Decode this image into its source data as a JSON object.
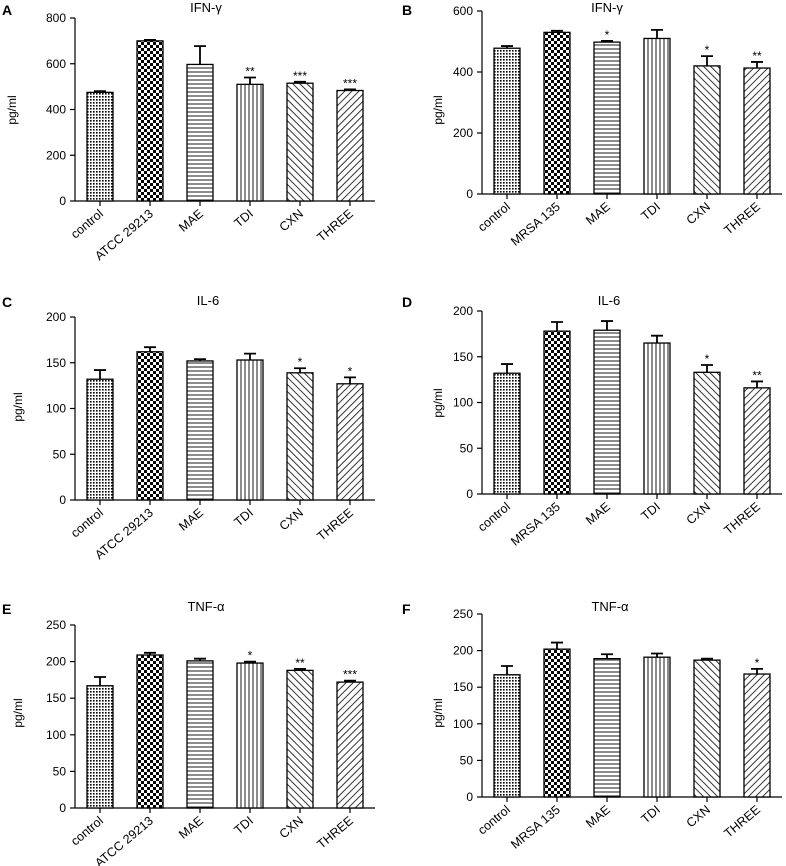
{
  "figure": {
    "patterns": [
      "dots",
      "checker",
      "hlines",
      "vlines",
      "diagup",
      "diagdown"
    ]
  },
  "chart_data": [
    {
      "panel": "A",
      "type": "bar",
      "title": "IFN-γ",
      "ylabel": "pg/ml",
      "ylim": [
        0,
        800
      ],
      "yticks": [
        0,
        200,
        400,
        600,
        800
      ],
      "categories": [
        "control",
        "ATCC 29213",
        "MAE",
        "TDI",
        "CXN",
        "THREE"
      ],
      "values": [
        475,
        700,
        597,
        510,
        515,
        483
      ],
      "errors": [
        5,
        4,
        80,
        30,
        6,
        5
      ],
      "significance": [
        "",
        "",
        "",
        "**",
        "***",
        "***"
      ]
    },
    {
      "panel": "B",
      "type": "bar",
      "title": "IFN-γ",
      "ylabel": "pg/ml",
      "ylim": [
        0,
        600
      ],
      "yticks": [
        0,
        200,
        400,
        600
      ],
      "categories": [
        "control",
        "MRSA 135",
        "MAE",
        "TDI",
        "CXN",
        "THREE"
      ],
      "values": [
        478,
        530,
        498,
        510,
        420,
        413
      ],
      "errors": [
        7,
        5,
        4,
        28,
        32,
        20
      ],
      "significance": [
        "",
        "",
        "*",
        "",
        "*",
        "**"
      ]
    },
    {
      "panel": "C",
      "type": "bar",
      "title": "IL-6",
      "ylabel": "pg/ml",
      "ylim": [
        0,
        200
      ],
      "yticks": [
        0,
        50,
        100,
        150,
        200
      ],
      "categories": [
        "control",
        "ATCC 29213",
        "MAE",
        "TDI",
        "CXN",
        "THREE"
      ],
      "values": [
        132,
        162,
        152,
        153,
        139,
        127
      ],
      "errors": [
        10,
        5,
        2,
        7,
        5,
        7
      ],
      "significance": [
        "",
        "",
        "",
        "",
        "*",
        "*"
      ]
    },
    {
      "panel": "D",
      "type": "bar",
      "title": "IL-6",
      "ylabel": "pg/ml",
      "ylim": [
        0,
        200
      ],
      "yticks": [
        0,
        50,
        100,
        150,
        200
      ],
      "categories": [
        "control",
        "MRSA 135",
        "MAE",
        "TDI",
        "CXN",
        "THREE"
      ],
      "values": [
        132,
        178,
        179,
        165,
        133,
        116
      ],
      "errors": [
        10,
        10,
        10,
        8,
        8,
        7
      ],
      "significance": [
        "",
        "",
        "",
        "",
        "*",
        "**"
      ]
    },
    {
      "panel": "E",
      "type": "bar",
      "title": "TNF-α",
      "ylabel": "pg/ml",
      "ylim": [
        0,
        250
      ],
      "yticks": [
        0,
        50,
        100,
        150,
        200,
        250
      ],
      "categories": [
        "control",
        "ATCC 29213",
        "MAE",
        "TDI",
        "CXN",
        "THREE"
      ],
      "values": [
        167,
        209,
        201,
        198,
        188,
        172
      ],
      "errors": [
        12,
        3,
        3,
        2,
        2,
        2
      ],
      "significance": [
        "",
        "",
        "",
        "*",
        "**",
        "***"
      ]
    },
    {
      "panel": "F",
      "type": "bar",
      "title": "TNF-α",
      "ylabel": "pg/ml",
      "ylim": [
        0,
        250
      ],
      "yticks": [
        0,
        50,
        100,
        150,
        200,
        250
      ],
      "categories": [
        "control",
        "MRSA 135",
        "MAE",
        "TDI",
        "CXN",
        "THREE"
      ],
      "values": [
        167,
        202,
        189,
        191,
        187,
        168
      ],
      "errors": [
        12,
        9,
        6,
        5,
        2,
        7
      ],
      "significance": [
        "",
        "",
        "",
        "",
        "",
        "*"
      ]
    }
  ]
}
